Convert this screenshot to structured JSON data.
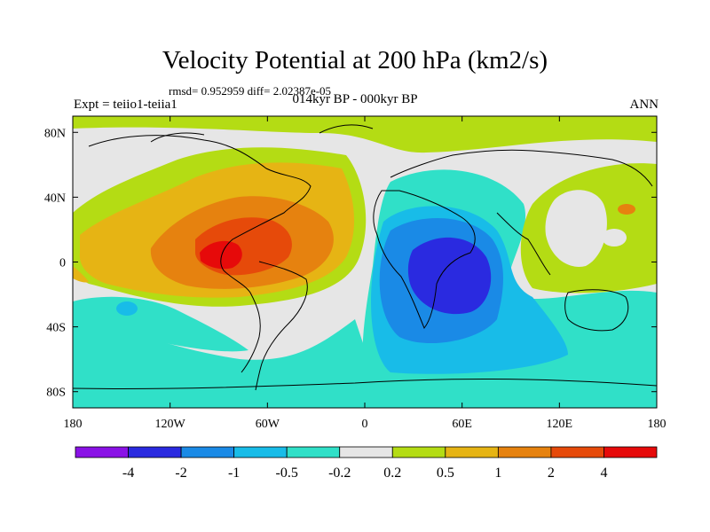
{
  "title": "Velocity Potential at 200 hPa (km2/s)",
  "stats": "rmsd= 0.952959  diff= 2.02387e-05",
  "experiment": "Expt = teiio1-teiia1",
  "period": "014kyr BP - 000kyr BP",
  "season": "ANN",
  "map": {
    "lon_range": [
      -180,
      180
    ],
    "lat_range": [
      -90,
      90
    ],
    "lon_ticks": [
      {
        "value": -180,
        "label": "180"
      },
      {
        "value": -120,
        "label": "120W"
      },
      {
        "value": -60,
        "label": "60W"
      },
      {
        "value": 0,
        "label": "0"
      },
      {
        "value": 60,
        "label": "60E"
      },
      {
        "value": 120,
        "label": "120E"
      },
      {
        "value": 180,
        "label": "180"
      }
    ],
    "lat_ticks": [
      {
        "value": 80,
        "label": "80N"
      },
      {
        "value": 40,
        "label": "40N"
      },
      {
        "value": 0,
        "label": "0"
      },
      {
        "value": -40,
        "label": "40S"
      },
      {
        "value": -80,
        "label": "80S"
      }
    ]
  },
  "colorbar": {
    "levels": [
      "-4",
      "-2",
      "-1",
      "-0.5",
      "-0.2",
      "0.2",
      "0.5",
      "1",
      "2",
      "4"
    ],
    "colors": [
      "#8a12e6",
      "#2a2ae0",
      "#1a8ae6",
      "#18bce8",
      "#30e0c8",
      "#e6e6e6",
      "#b4dc14",
      "#e6b414",
      "#e6820f",
      "#e64a0a",
      "#e60a0a"
    ]
  }
}
